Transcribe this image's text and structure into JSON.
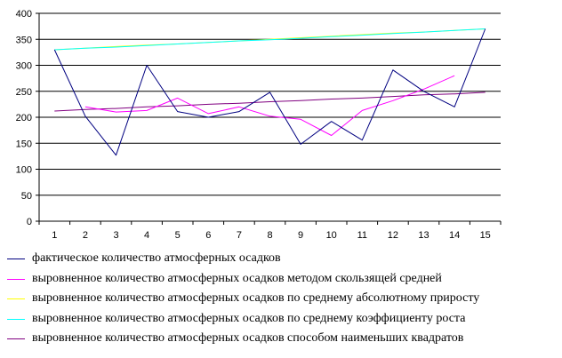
{
  "chart_data": {
    "type": "line",
    "x": [
      "1",
      "2",
      "3",
      "4",
      "5",
      "6",
      "7",
      "8",
      "9",
      "10",
      "11",
      "12",
      "13",
      "14",
      "15"
    ],
    "ylim": [
      0,
      400
    ],
    "yticks": [
      "0",
      "50",
      "100",
      "150",
      "200",
      "250",
      "300",
      "350",
      "400"
    ],
    "grid": true,
    "legend_position": "bottom",
    "series": [
      {
        "name": "фактическое количество атмосферных осадков",
        "color": "#000080",
        "values": [
          330,
          202,
          127,
          300,
          211,
          200,
          211,
          248,
          148,
          192,
          156,
          291,
          250,
          220,
          370
        ]
      },
      {
        "name": "выровненное количество атмосферных осадков методом скользящей средней",
        "color": "#ff00ff",
        "values": [
          null,
          220,
          210,
          213,
          237,
          207,
          220,
          202,
          196,
          165,
          213,
          232,
          254,
          280,
          null
        ]
      },
      {
        "name": "выровненное количество атмосферных осадков по среднему абсолютному приросту",
        "color": "#ffff00",
        "values": [
          330,
          333,
          336,
          339,
          341,
          344,
          347,
          350,
          353,
          356,
          359,
          362,
          364,
          367,
          370
        ]
      },
      {
        "name": "выровненное количество атмосферных осадков по среднему коэффициенту роста",
        "color": "#00ffff",
        "values": [
          330,
          333,
          335,
          338,
          341,
          344,
          347,
          349,
          352,
          355,
          358,
          361,
          364,
          367,
          370
        ]
      },
      {
        "name": "выровненное количество атмосферных осадков способом наименьших квадратов",
        "color": "#800080",
        "values": [
          212,
          215,
          217,
          220,
          222,
          225,
          227,
          230,
          232,
          235,
          237,
          240,
          243,
          245,
          248
        ]
      }
    ]
  }
}
